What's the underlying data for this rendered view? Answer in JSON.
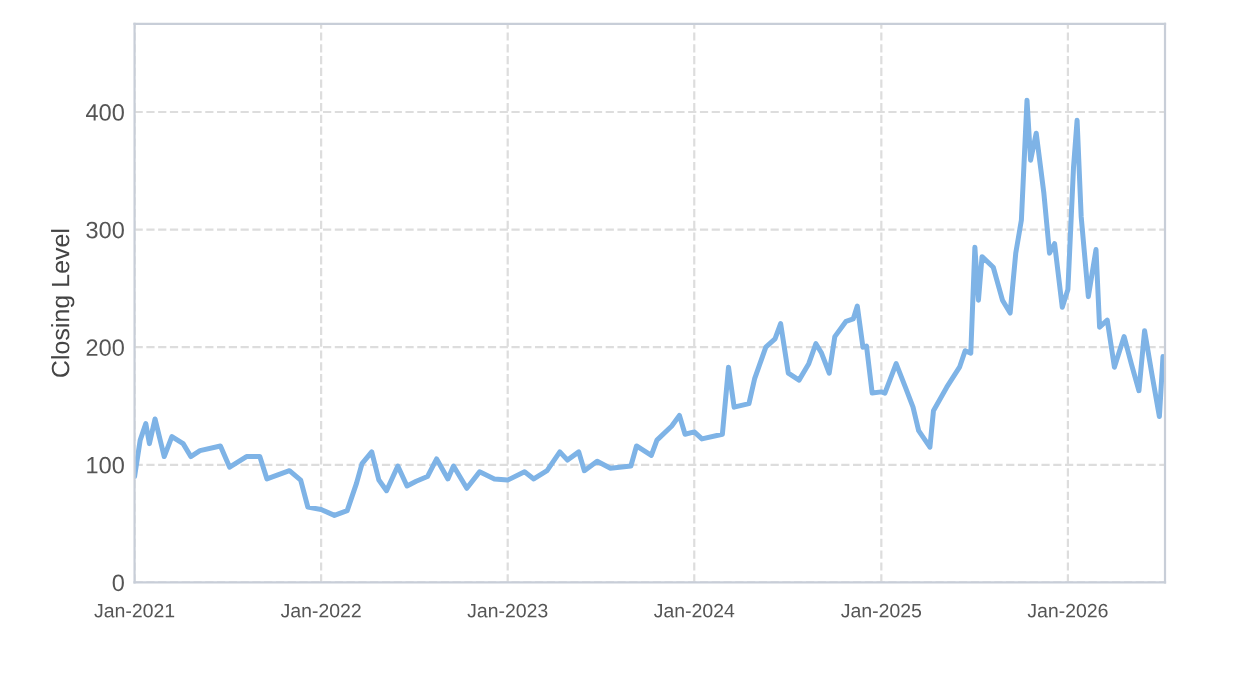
{
  "chart_data": {
    "type": "line",
    "ylabel": "Closing Level",
    "x": [
      "2021-01-01",
      "2021-01-12",
      "2021-01-23",
      "2021-01-30",
      "2021-02-10",
      "2021-02-28",
      "2021-03-15",
      "2021-04-06",
      "2021-04-21",
      "2021-05-09",
      "2021-06-18",
      "2021-07-06",
      "2021-08-08",
      "2021-09-03",
      "2021-09-17",
      "2021-10-31",
      "2021-11-22",
      "2021-12-06",
      "2022-01-01",
      "2022-01-27",
      "2022-02-21",
      "2022-03-11",
      "2022-03-22",
      "2022-04-10",
      "2022-04-24",
      "2022-05-09",
      "2022-05-31",
      "2022-06-18",
      "2022-07-06",
      "2022-07-28",
      "2022-08-15",
      "2022-09-06",
      "2022-09-17",
      "2022-10-13",
      "2022-11-07",
      "2022-12-06",
      "2023-01-01",
      "2023-02-03",
      "2023-02-21",
      "2023-03-19",
      "2023-04-13",
      "2023-04-28",
      "2023-05-20",
      "2023-05-31",
      "2023-06-25",
      "2023-07-21",
      "2023-08-30",
      "2023-09-10",
      "2023-10-09",
      "2023-10-20",
      "2023-11-18",
      "2023-12-03",
      "2023-12-14",
      "2024-01-01",
      "2024-01-16",
      "2024-02-25",
      "2024-03-08",
      "2024-03-19",
      "2024-04-17",
      "2024-04-28",
      "2024-05-20",
      "2024-06-07",
      "2024-06-18",
      "2024-07-03",
      "2024-07-24",
      "2024-08-12",
      "2024-08-26",
      "2024-09-06",
      "2024-09-21",
      "2024-10-02",
      "2024-10-24",
      "2024-11-07",
      "2024-11-15",
      "2024-11-26",
      "2024-12-03",
      "2024-12-14",
      "2025-01-01",
      "2025-01-08",
      "2025-01-30",
      "2025-02-17",
      "2025-03-04",
      "2025-03-15",
      "2025-04-06",
      "2025-04-13",
      "2025-05-09",
      "2025-06-03",
      "2025-06-14",
      "2025-06-25",
      "2025-07-03",
      "2025-07-10",
      "2025-07-17",
      "2025-08-08",
      "2025-08-26",
      "2025-09-10",
      "2025-09-21",
      "2025-10-02",
      "2025-10-13",
      "2025-10-20",
      "2025-10-31",
      "2025-11-15",
      "2025-11-26",
      "2025-12-06",
      "2025-12-21",
      "2026-01-01",
      "2026-01-12",
      "2026-01-19",
      "2026-01-27",
      "2026-02-10",
      "2026-02-25",
      "2026-03-04",
      "2026-03-19",
      "2026-04-02",
      "2026-04-21",
      "2026-05-05",
      "2026-05-20",
      "2026-05-31",
      "2026-06-14",
      "2026-06-29",
      "2026-07-06"
    ],
    "series": [
      {
        "color": "#7eb3e6",
        "values": [
          90,
          121,
          135,
          118,
          139,
          107,
          124,
          118,
          107,
          112,
          116,
          98,
          107,
          107,
          88,
          95,
          87,
          64,
          62,
          57,
          61,
          84,
          101,
          111,
          87,
          78,
          99,
          82,
          86,
          90,
          105,
          88,
          99,
          80,
          94,
          88,
          87,
          94,
          88,
          95,
          111,
          104,
          111,
          95,
          103,
          97,
          99,
          116,
          108,
          121,
          133,
          142,
          126,
          128,
          122,
          126,
          183,
          149,
          152,
          173,
          200,
          207,
          220,
          178,
          172,
          186,
          203,
          195,
          178,
          209,
          222,
          224,
          235,
          200,
          201,
          161,
          162,
          161,
          186,
          166,
          149,
          129,
          115,
          146,
          166,
          183,
          197,
          195,
          285,
          240,
          277,
          268,
          240,
          229,
          280,
          308,
          410,
          359,
          382,
          331,
          280,
          288,
          234,
          249,
          353,
          393,
          311,
          243,
          283,
          217,
          223,
          183,
          209,
          186,
          163,
          214,
          178,
          141,
          192
        ]
      }
    ],
    "xlim": [
      "2021-01-01",
      "2026-07-10"
    ],
    "ylim": [
      0,
      475
    ],
    "xticks": [
      {
        "value": "2021-01-01",
        "label": "Jan-2021"
      },
      {
        "value": "2022-01-01",
        "label": "Jan-2022"
      },
      {
        "value": "2023-01-01",
        "label": "Jan-2023"
      },
      {
        "value": "2024-01-01",
        "label": "Jan-2024"
      },
      {
        "value": "2025-01-01",
        "label": "Jan-2025"
      },
      {
        "value": "2026-01-01",
        "label": "Jan-2026"
      }
    ],
    "yticks": [
      0,
      100,
      200,
      300,
      400
    ],
    "grid": true,
    "legend": false,
    "marker": "none",
    "line_style": "solid"
  }
}
